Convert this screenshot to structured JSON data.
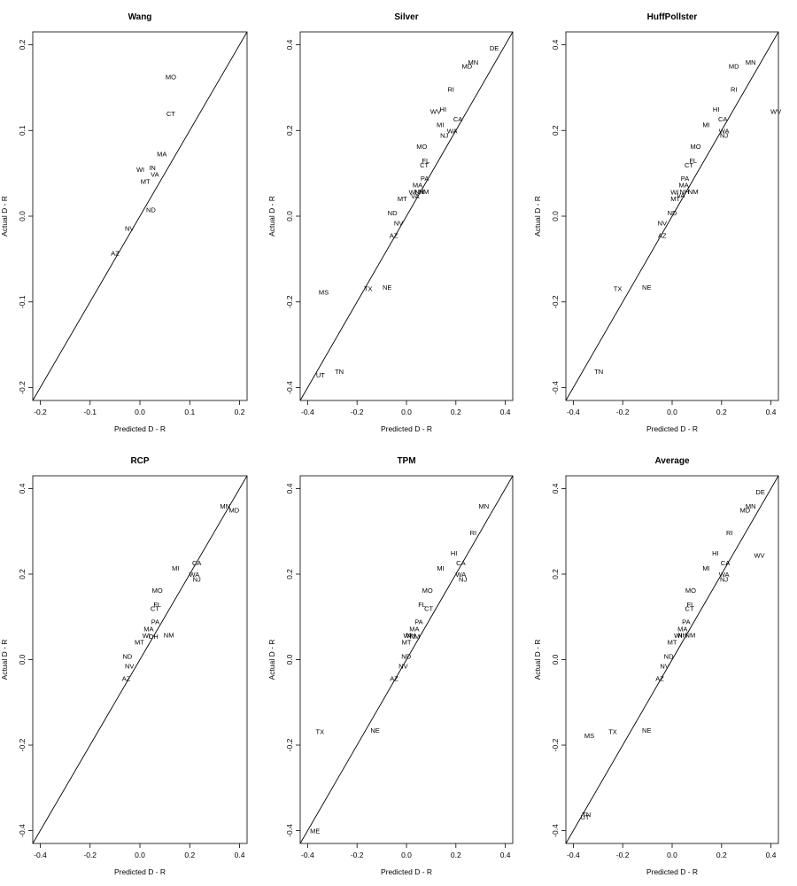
{
  "chart_data": [
    {
      "type": "scatter",
      "title": "Wang",
      "xlabel": "Predicted D - R",
      "ylabel": "Actual D - R",
      "xlim": [
        -0.215,
        0.215
      ],
      "ylim": [
        -0.215,
        0.215
      ],
      "xticks": [
        -0.2,
        -0.1,
        0.0,
        0.1,
        0.2
      ],
      "yticks": [
        -0.2,
        -0.1,
        0.0,
        0.1,
        0.2
      ],
      "xticklabels": [
        "-0.2",
        "-0.1",
        "0.0",
        "0.1",
        "0.2"
      ],
      "yticklabels": [
        "-0.2",
        "-0.1",
        "0.0",
        "0.1",
        "0.2"
      ],
      "reference_line": "y = x",
      "points": [
        {
          "label": "MO",
          "x": 0.062,
          "y": 0.163
        },
        {
          "label": "CT",
          "x": 0.062,
          "y": 0.12
        },
        {
          "label": "MA",
          "x": 0.044,
          "y": 0.073
        },
        {
          "label": "WI",
          "x": 0.001,
          "y": 0.055
        },
        {
          "label": "IN",
          "x": 0.025,
          "y": 0.057
        },
        {
          "label": "VA",
          "x": 0.03,
          "y": 0.049
        },
        {
          "label": "MT",
          "x": 0.011,
          "y": 0.041
        },
        {
          "label": "ND",
          "x": 0.022,
          "y": 0.008
        },
        {
          "label": "NV",
          "x": -0.021,
          "y": -0.014
        },
        {
          "label": "AZ",
          "x": -0.05,
          "y": -0.043
        }
      ]
    },
    {
      "type": "scatter",
      "title": "Silver",
      "xlabel": "Predicted D - R",
      "ylabel": "Actual D - R",
      "xlim": [
        -0.43,
        0.43
      ],
      "ylim": [
        -0.43,
        0.43
      ],
      "xticks": [
        -0.4,
        -0.2,
        0.0,
        0.2,
        0.4
      ],
      "yticks": [
        -0.4,
        -0.2,
        0.0,
        0.2,
        0.4
      ],
      "xticklabels": [
        "-0.4",
        "-0.2",
        "0.0",
        "0.2",
        "0.4"
      ],
      "yticklabels": [
        "-0.4",
        "-0.2",
        "0.0",
        "0.2",
        "0.4"
      ],
      "reference_line": "y = x",
      "points": [
        {
          "label": "DE",
          "x": 0.355,
          "y": 0.393
        },
        {
          "label": "MN",
          "x": 0.27,
          "y": 0.36
        },
        {
          "label": "MD",
          "x": 0.245,
          "y": 0.35
        },
        {
          "label": "RI",
          "x": 0.18,
          "y": 0.297
        },
        {
          "label": "HI",
          "x": 0.148,
          "y": 0.25
        },
        {
          "label": "WV",
          "x": 0.118,
          "y": 0.245
        },
        {
          "label": "CA",
          "x": 0.208,
          "y": 0.227
        },
        {
          "label": "MI",
          "x": 0.137,
          "y": 0.214
        },
        {
          "label": "WA",
          "x": 0.185,
          "y": 0.2
        },
        {
          "label": "NJ",
          "x": 0.153,
          "y": 0.189
        },
        {
          "label": "MO",
          "x": 0.062,
          "y": 0.163
        },
        {
          "label": "FL",
          "x": 0.078,
          "y": 0.13
        },
        {
          "label": "CT",
          "x": 0.072,
          "y": 0.12
        },
        {
          "label": "PA",
          "x": 0.074,
          "y": 0.089
        },
        {
          "label": "MA",
          "x": 0.045,
          "y": 0.073
        },
        {
          "label": "WI",
          "x": 0.026,
          "y": 0.057
        },
        {
          "label": "NH",
          "x": 0.052,
          "y": 0.058
        },
        {
          "label": "NM",
          "x": 0.07,
          "y": 0.058
        },
        {
          "label": "VA",
          "x": 0.035,
          "y": 0.048
        },
        {
          "label": "MT",
          "x": -0.017,
          "y": 0.041
        },
        {
          "label": "ND",
          "x": -0.057,
          "y": 0.008
        },
        {
          "label": "NV",
          "x": -0.032,
          "y": -0.015
        },
        {
          "label": "AZ",
          "x": -0.052,
          "y": -0.044
        },
        {
          "label": "MS",
          "x": -0.335,
          "y": -0.177
        },
        {
          "label": "TX",
          "x": -0.155,
          "y": -0.168
        },
        {
          "label": "NE",
          "x": -0.078,
          "y": -0.165
        },
        {
          "label": "TN",
          "x": -0.272,
          "y": -0.362
        },
        {
          "label": "UT",
          "x": -0.348,
          "y": -0.37
        }
      ]
    },
    {
      "type": "scatter",
      "title": "HuffPollster",
      "xlabel": "Predicted D - R",
      "ylabel": "Actual D - R",
      "xlim": [
        -0.43,
        0.43
      ],
      "ylim": [
        -0.43,
        0.43
      ],
      "xticks": [
        -0.4,
        -0.2,
        0.0,
        0.2,
        0.4
      ],
      "yticks": [
        -0.4,
        -0.2,
        0.0,
        0.2,
        0.4
      ],
      "xticklabels": [
        "-0.4",
        "-0.2",
        "0.0",
        "0.2",
        "0.4"
      ],
      "yticklabels": [
        "-0.4",
        "-0.2",
        "0.0",
        "0.2",
        "0.4"
      ],
      "reference_line": "y = x",
      "points": [
        {
          "label": "MN",
          "x": 0.318,
          "y": 0.36
        },
        {
          "label": "MD",
          "x": 0.25,
          "y": 0.35
        },
        {
          "label": "RI",
          "x": 0.25,
          "y": 0.297
        },
        {
          "label": "WV",
          "x": 0.42,
          "y": 0.245
        },
        {
          "label": "HI",
          "x": 0.178,
          "y": 0.25
        },
        {
          "label": "CA",
          "x": 0.205,
          "y": 0.227
        },
        {
          "label": "MI",
          "x": 0.138,
          "y": 0.214
        },
        {
          "label": "WA",
          "x": 0.21,
          "y": 0.2
        },
        {
          "label": "NJ",
          "x": 0.21,
          "y": 0.189
        },
        {
          "label": "MO",
          "x": 0.095,
          "y": 0.163
        },
        {
          "label": "FL",
          "x": 0.085,
          "y": 0.13
        },
        {
          "label": "CT",
          "x": 0.068,
          "y": 0.12
        },
        {
          "label": "PA",
          "x": 0.052,
          "y": 0.089
        },
        {
          "label": "MA",
          "x": 0.047,
          "y": 0.073
        },
        {
          "label": "WI",
          "x": 0.01,
          "y": 0.057
        },
        {
          "label": "NH",
          "x": 0.05,
          "y": 0.058
        },
        {
          "label": "NM",
          "x": 0.085,
          "y": 0.058
        },
        {
          "label": "VA",
          "x": 0.035,
          "y": 0.05
        },
        {
          "label": "MT",
          "x": 0.013,
          "y": 0.041
        },
        {
          "label": "ND",
          "x": 0.0,
          "y": 0.008
        },
        {
          "label": "NV",
          "x": -0.04,
          "y": -0.015
        },
        {
          "label": "AZ",
          "x": -0.04,
          "y": -0.044
        },
        {
          "label": "TX",
          "x": -0.22,
          "y": -0.168
        },
        {
          "label": "NE",
          "x": -0.103,
          "y": -0.165
        },
        {
          "label": "TN",
          "x": -0.297,
          "y": -0.362
        }
      ]
    },
    {
      "type": "scatter",
      "title": "RCP",
      "xlabel": "Predicted D - R",
      "ylabel": "Actual D - R",
      "xlim": [
        -0.43,
        0.43
      ],
      "ylim": [
        -0.43,
        0.43
      ],
      "xticks": [
        -0.4,
        -0.2,
        0.0,
        0.2,
        0.4
      ],
      "yticks": [
        -0.4,
        -0.2,
        0.0,
        0.2,
        0.4
      ],
      "xticklabels": [
        "-0.4",
        "-0.2",
        "0.0",
        "0.2",
        "0.4"
      ],
      "yticklabels": [
        "-0.4",
        "-0.2",
        "0.0",
        "0.2",
        "0.4"
      ],
      "reference_line": "y = x",
      "points": [
        {
          "label": "MN",
          "x": 0.342,
          "y": 0.36
        },
        {
          "label": "MD",
          "x": 0.378,
          "y": 0.35
        },
        {
          "label": "CA",
          "x": 0.228,
          "y": 0.227
        },
        {
          "label": "MI",
          "x": 0.143,
          "y": 0.214
        },
        {
          "label": "WA",
          "x": 0.218,
          "y": 0.2
        },
        {
          "label": "NJ",
          "x": 0.228,
          "y": 0.189
        },
        {
          "label": "MO",
          "x": 0.07,
          "y": 0.163
        },
        {
          "label": "FL",
          "x": 0.07,
          "y": 0.13
        },
        {
          "label": "CT",
          "x": 0.06,
          "y": 0.12
        },
        {
          "label": "PA",
          "x": 0.062,
          "y": 0.089
        },
        {
          "label": "MA",
          "x": 0.035,
          "y": 0.073
        },
        {
          "label": "WI",
          "x": 0.026,
          "y": 0.057
        },
        {
          "label": "OH",
          "x": 0.054,
          "y": 0.055
        },
        {
          "label": "NM",
          "x": 0.116,
          "y": 0.058
        },
        {
          "label": "MT",
          "x": -0.002,
          "y": 0.041
        },
        {
          "label": "ND",
          "x": -0.05,
          "y": 0.008
        },
        {
          "label": "NV",
          "x": -0.042,
          "y": -0.015
        },
        {
          "label": "AZ",
          "x": -0.055,
          "y": -0.044
        }
      ]
    },
    {
      "type": "scatter",
      "title": "TPM",
      "xlabel": "Predicted D - R",
      "ylabel": "Actual D - R",
      "xlim": [
        -0.43,
        0.43
      ],
      "ylim": [
        -0.43,
        0.43
      ],
      "xticks": [
        -0.4,
        -0.2,
        0.0,
        0.2,
        0.4
      ],
      "yticks": [
        -0.4,
        -0.2,
        0.0,
        0.2,
        0.4
      ],
      "xticklabels": [
        "-0.4",
        "-0.2",
        "0.0",
        "0.2",
        "0.4"
      ],
      "yticklabels": [
        "-0.4",
        "-0.2",
        "0.0",
        "0.2",
        "0.4"
      ],
      "reference_line": "y = x",
      "points": [
        {
          "label": "MN",
          "x": 0.313,
          "y": 0.36
        },
        {
          "label": "RI",
          "x": 0.27,
          "y": 0.297
        },
        {
          "label": "HI",
          "x": 0.192,
          "y": 0.25
        },
        {
          "label": "CA",
          "x": 0.22,
          "y": 0.227
        },
        {
          "label": "MI",
          "x": 0.138,
          "y": 0.214
        },
        {
          "label": "WA",
          "x": 0.22,
          "y": 0.2
        },
        {
          "label": "NJ",
          "x": 0.228,
          "y": 0.189
        },
        {
          "label": "MO",
          "x": 0.085,
          "y": 0.163
        },
        {
          "label": "FL",
          "x": 0.063,
          "y": 0.13
        },
        {
          "label": "CT",
          "x": 0.09,
          "y": 0.12
        },
        {
          "label": "PA",
          "x": 0.05,
          "y": 0.089
        },
        {
          "label": "MA",
          "x": 0.032,
          "y": 0.073
        },
        {
          "label": "WI",
          "x": 0.004,
          "y": 0.057
        },
        {
          "label": "NH",
          "x": 0.018,
          "y": 0.058
        },
        {
          "label": "NM",
          "x": 0.034,
          "y": 0.055
        },
        {
          "label": "MT",
          "x": 0.0,
          "y": 0.041
        },
        {
          "label": "ND",
          "x": -0.001,
          "y": 0.008
        },
        {
          "label": "NV",
          "x": -0.013,
          "y": -0.015
        },
        {
          "label": "AZ",
          "x": -0.05,
          "y": -0.044
        },
        {
          "label": "TX",
          "x": -0.35,
          "y": -0.168
        },
        {
          "label": "NE",
          "x": -0.127,
          "y": -0.165
        },
        {
          "label": "ME",
          "x": -0.37,
          "y": -0.4
        }
      ]
    },
    {
      "type": "scatter",
      "title": "Average",
      "xlabel": "Predicted D - R",
      "ylabel": "Actual D - R",
      "xlim": [
        -0.43,
        0.43
      ],
      "ylim": [
        -0.43,
        0.43
      ],
      "xticks": [
        -0.4,
        -0.2,
        0.0,
        0.2,
        0.4
      ],
      "yticks": [
        -0.4,
        -0.2,
        0.0,
        0.2,
        0.4
      ],
      "xticklabels": [
        "-0.4",
        "-0.2",
        "0.0",
        "0.2",
        "0.4"
      ],
      "yticklabels": [
        "-0.4",
        "-0.2",
        "0.0",
        "0.2",
        "0.4"
      ],
      "reference_line": "y = x",
      "points": [
        {
          "label": "DE",
          "x": 0.357,
          "y": 0.393
        },
        {
          "label": "MN",
          "x": 0.318,
          "y": 0.36
        },
        {
          "label": "MD",
          "x": 0.295,
          "y": 0.35
        },
        {
          "label": "RI",
          "x": 0.232,
          "y": 0.297
        },
        {
          "label": "HI",
          "x": 0.175,
          "y": 0.25
        },
        {
          "label": "WV",
          "x": 0.353,
          "y": 0.245
        },
        {
          "label": "CA",
          "x": 0.215,
          "y": 0.227
        },
        {
          "label": "MI",
          "x": 0.138,
          "y": 0.214
        },
        {
          "label": "WA",
          "x": 0.21,
          "y": 0.2
        },
        {
          "label": "NJ",
          "x": 0.21,
          "y": 0.189
        },
        {
          "label": "MO",
          "x": 0.075,
          "y": 0.163
        },
        {
          "label": "FL",
          "x": 0.075,
          "y": 0.13
        },
        {
          "label": "CT",
          "x": 0.07,
          "y": 0.12
        },
        {
          "label": "PA",
          "x": 0.057,
          "y": 0.089
        },
        {
          "label": "MA",
          "x": 0.042,
          "y": 0.073
        },
        {
          "label": "WI",
          "x": 0.024,
          "y": 0.057
        },
        {
          "label": "NH",
          "x": 0.042,
          "y": 0.058
        },
        {
          "label": "NM",
          "x": 0.073,
          "y": 0.058
        },
        {
          "label": "MT",
          "x": 0.0,
          "y": 0.041
        },
        {
          "label": "ND",
          "x": -0.014,
          "y": 0.008
        },
        {
          "label": "NV",
          "x": -0.03,
          "y": -0.015
        },
        {
          "label": "AZ",
          "x": -0.05,
          "y": -0.044
        },
        {
          "label": "MS",
          "x": -0.335,
          "y": -0.177
        },
        {
          "label": "TX",
          "x": -0.24,
          "y": -0.168
        },
        {
          "label": "NE",
          "x": -0.103,
          "y": -0.165
        },
        {
          "label": "TN",
          "x": -0.347,
          "y": -0.362
        },
        {
          "label": "UT",
          "x": -0.353,
          "y": -0.368
        }
      ]
    }
  ]
}
